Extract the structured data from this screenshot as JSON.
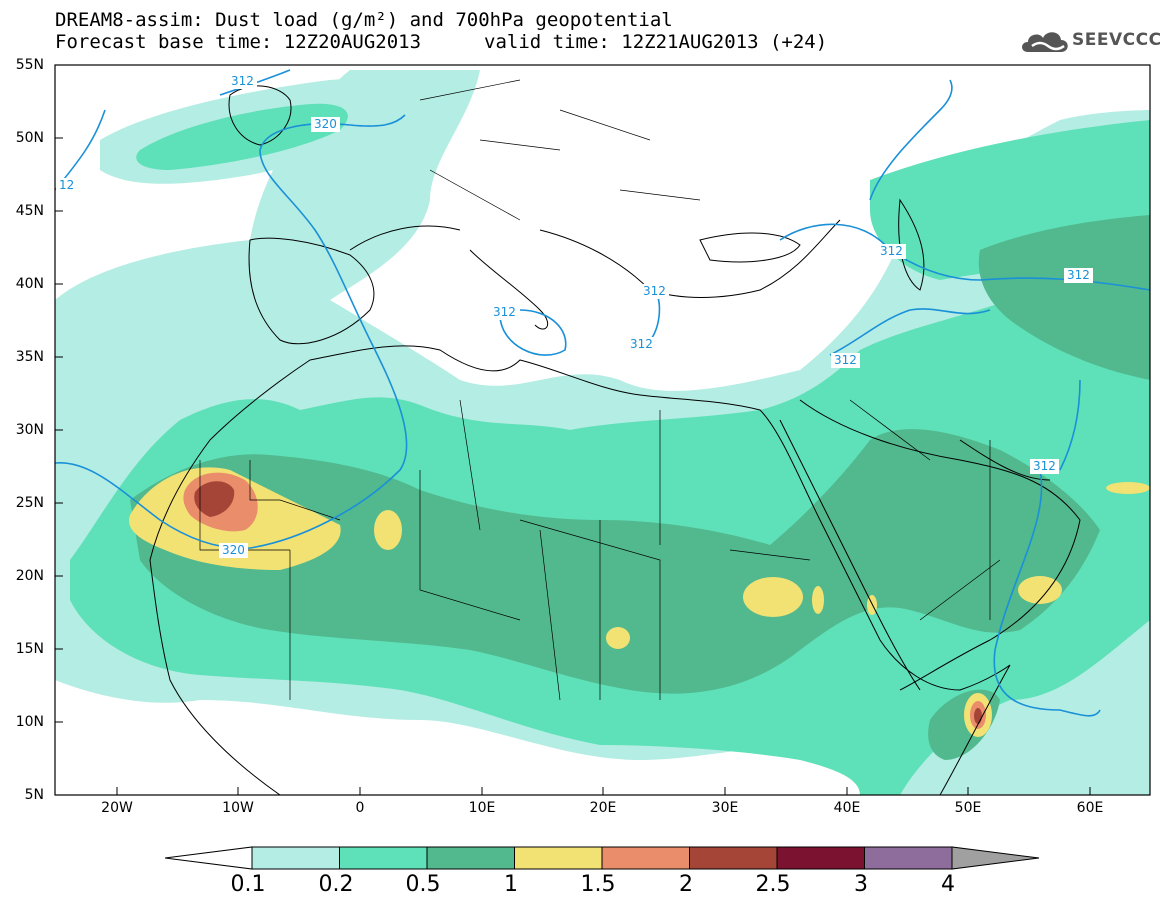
{
  "header": {
    "title": "DREAM8-assim: Dust load (g/m²) and 700hPa geopotential",
    "forecast_base": "Forecast base time: 12Z20AUG2013",
    "valid_time": "valid time: 12Z21AUG2013 (+24)"
  },
  "logo": {
    "text": "SEEVCCC",
    "icon": "cloud-icon"
  },
  "map": {
    "region": "North Africa, Europe and Middle East",
    "lat_labels": [
      "55N",
      "50N",
      "45N",
      "40N",
      "35N",
      "30N",
      "25N",
      "20N",
      "15N",
      "10N",
      "5N"
    ],
    "lon_labels": [
      "20W",
      "10W",
      "0",
      "10E",
      "20E",
      "30E",
      "40E",
      "50E",
      "60E"
    ],
    "contour_labels": [
      "312",
      "320",
      "12",
      "312",
      "312",
      "312",
      "312",
      "312",
      "312",
      "320",
      "312"
    ],
    "contour_color": "#1a90d8"
  },
  "colorbar": {
    "labels": [
      "0.1",
      "0.2",
      "0.5",
      "1",
      "1.5",
      "2",
      "2.5",
      "3",
      "4"
    ],
    "colors": [
      "#b3ede3",
      "#5ee0b8",
      "#52b88e",
      "#f2e274",
      "#e98d6b",
      "#a44538",
      "#7a1230",
      "#8e6c9c"
    ],
    "lower_arrow_color": "#ffffff",
    "upper_arrow_color": "#a0a0a0"
  }
}
